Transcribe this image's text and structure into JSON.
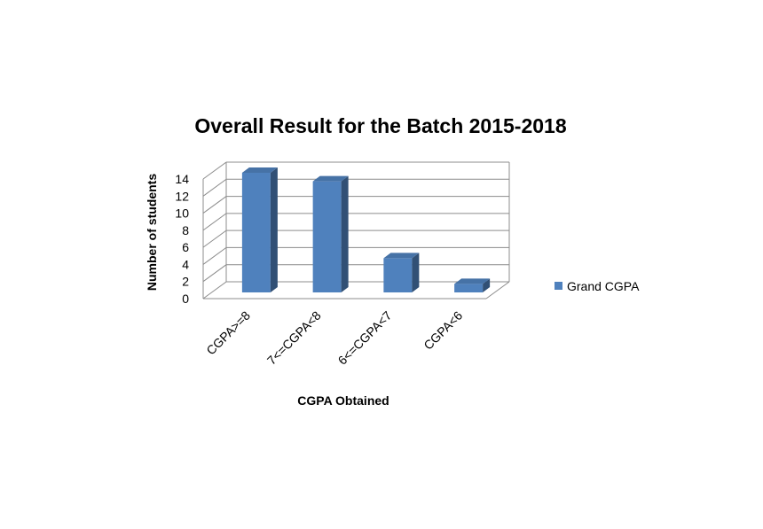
{
  "chart_data": {
    "type": "bar",
    "title": "Overall Result for the Batch 2015-2018",
    "xlabel": "CGPA  Obtained",
    "ylabel": "Number of students",
    "ylim": [
      0,
      14
    ],
    "ytick_step": 2,
    "yticks": [
      "0",
      "2",
      "4",
      "6",
      "8",
      "10",
      "12",
      "14"
    ],
    "categories": [
      "CGPA>=8",
      "7<=CGPA<8",
      "6<=CGPA<7",
      "CGPA<6"
    ],
    "series": [
      {
        "name": "Grand CGPA",
        "values": [
          14,
          13,
          4,
          1
        ],
        "color": "#4F81BD"
      }
    ],
    "grid": true,
    "legend_position": "right",
    "style": "3d-column"
  }
}
